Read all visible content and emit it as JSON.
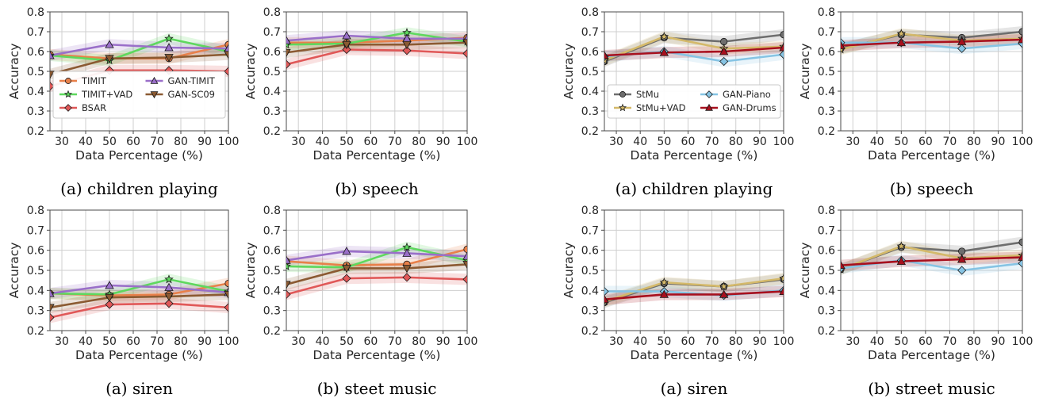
{
  "chart_data": [
    {
      "type": "line",
      "caption": "(a) children playing",
      "xlabel": "Data Percentage (%)",
      "ylabel": "Accuracy",
      "xlim": [
        25,
        100
      ],
      "ylim": [
        0.2,
        0.8
      ],
      "x": [
        25,
        50,
        75,
        100
      ],
      "xticks": [
        30,
        40,
        50,
        60,
        70,
        80,
        90,
        100
      ],
      "yticks": [
        0.2,
        0.3,
        0.4,
        0.5,
        0.6,
        0.7,
        0.8
      ],
      "grid": true,
      "legend": {
        "position": "lower-left",
        "columns": 2,
        "order": [
          "TIMIT",
          "TIMIT+VAD",
          "BSAR",
          "GAN-TIMIT",
          "GAN-SC09"
        ]
      },
      "series": [
        {
          "name": "TIMIT",
          "color": "#e8804a",
          "marker": "circle",
          "values": [
            0.585,
            0.565,
            0.565,
            0.635
          ]
        },
        {
          "name": "TIMIT+VAD",
          "color": "#5ed85e",
          "marker": "star",
          "values": [
            0.58,
            0.555,
            0.665,
            0.6
          ]
        },
        {
          "name": "BSAR",
          "color": "#e05858",
          "marker": "diamond",
          "values": [
            0.425,
            0.505,
            0.505,
            0.5
          ]
        },
        {
          "name": "GAN-TIMIT",
          "color": "#9a6fc9",
          "marker": "triangle",
          "values": [
            0.58,
            0.635,
            0.62,
            0.615
          ]
        },
        {
          "name": "GAN-SC09",
          "color": "#8b5a32",
          "marker": "tri-down",
          "values": [
            0.485,
            0.565,
            0.57,
            0.585
          ]
        }
      ]
    },
    {
      "type": "line",
      "caption": "(b) speech",
      "xlabel": "Data Percentage (%)",
      "ylabel": "Accuracy",
      "xlim": [
        25,
        100
      ],
      "ylim": [
        0.2,
        0.8
      ],
      "x": [
        25,
        50,
        75,
        100
      ],
      "xticks": [
        30,
        40,
        50,
        60,
        70,
        80,
        90,
        100
      ],
      "yticks": [
        0.2,
        0.3,
        0.4,
        0.5,
        0.6,
        0.7,
        0.8
      ],
      "grid": true,
      "series": [
        {
          "name": "TIMIT",
          "color": "#e8804a",
          "marker": "circle",
          "values": [
            0.645,
            0.645,
            0.655,
            0.67
          ]
        },
        {
          "name": "TIMIT+VAD",
          "color": "#5ed85e",
          "marker": "star",
          "values": [
            0.635,
            0.64,
            0.695,
            0.65
          ]
        },
        {
          "name": "BSAR",
          "color": "#e05858",
          "marker": "diamond",
          "values": [
            0.535,
            0.61,
            0.605,
            0.59
          ]
        },
        {
          "name": "GAN-TIMIT",
          "color": "#9a6fc9",
          "marker": "triangle",
          "values": [
            0.655,
            0.68,
            0.665,
            0.665
          ]
        },
        {
          "name": "GAN-SC09",
          "color": "#8b5a32",
          "marker": "tri-down",
          "values": [
            0.595,
            0.635,
            0.635,
            0.645
          ]
        }
      ]
    },
    {
      "type": "line",
      "caption": "(a) siren",
      "xlabel": "Data Percentage (%)",
      "ylabel": "Accuracy",
      "xlim": [
        25,
        100
      ],
      "ylim": [
        0.2,
        0.8
      ],
      "x": [
        25,
        50,
        75,
        100
      ],
      "xticks": [
        30,
        40,
        50,
        60,
        70,
        80,
        90,
        100
      ],
      "yticks": [
        0.2,
        0.3,
        0.4,
        0.5,
        0.6,
        0.7,
        0.8
      ],
      "grid": true,
      "series": [
        {
          "name": "TIMIT",
          "color": "#e8804a",
          "marker": "circle",
          "values": [
            0.385,
            0.375,
            0.38,
            0.435
          ]
        },
        {
          "name": "TIMIT+VAD",
          "color": "#5ed85e",
          "marker": "star",
          "values": [
            0.385,
            0.38,
            0.455,
            0.395
          ]
        },
        {
          "name": "BSAR",
          "color": "#e05858",
          "marker": "diamond",
          "values": [
            0.265,
            0.33,
            0.335,
            0.315
          ]
        },
        {
          "name": "GAN-TIMIT",
          "color": "#9a6fc9",
          "marker": "triangle",
          "values": [
            0.385,
            0.425,
            0.415,
            0.39
          ]
        },
        {
          "name": "GAN-SC09",
          "color": "#8b5a32",
          "marker": "tri-down",
          "values": [
            0.315,
            0.365,
            0.37,
            0.38
          ]
        }
      ]
    },
    {
      "type": "line",
      "caption": "(b) steet music",
      "xlabel": "Data Percentage (%)",
      "ylabel": "Accuracy",
      "xlim": [
        25,
        100
      ],
      "ylim": [
        0.2,
        0.8
      ],
      "x": [
        25,
        50,
        75,
        100
      ],
      "xticks": [
        30,
        40,
        50,
        60,
        70,
        80,
        90,
        100
      ],
      "yticks": [
        0.2,
        0.3,
        0.4,
        0.5,
        0.6,
        0.7,
        0.8
      ],
      "grid": true,
      "series": [
        {
          "name": "TIMIT",
          "color": "#e8804a",
          "marker": "circle",
          "values": [
            0.545,
            0.525,
            0.53,
            0.605
          ]
        },
        {
          "name": "TIMIT+VAD",
          "color": "#5ed85e",
          "marker": "star",
          "values": [
            0.52,
            0.515,
            0.615,
            0.55
          ]
        },
        {
          "name": "BSAR",
          "color": "#e05858",
          "marker": "diamond",
          "values": [
            0.38,
            0.46,
            0.465,
            0.455
          ]
        },
        {
          "name": "GAN-TIMIT",
          "color": "#9a6fc9",
          "marker": "triangle",
          "values": [
            0.55,
            0.595,
            0.585,
            0.57
          ]
        },
        {
          "name": "GAN-SC09",
          "color": "#8b5a32",
          "marker": "tri-down",
          "values": [
            0.43,
            0.51,
            0.51,
            0.53
          ]
        }
      ]
    },
    {
      "type": "line",
      "caption": "(a) children playing",
      "xlabel": "Data Percentage (%)",
      "ylabel": "Accuracy",
      "xlim": [
        25,
        100
      ],
      "ylim": [
        0.2,
        0.8
      ],
      "x": [
        25,
        50,
        75,
        100
      ],
      "xticks": [
        30,
        40,
        50,
        60,
        70,
        80,
        90,
        100
      ],
      "yticks": [
        0.2,
        0.3,
        0.4,
        0.5,
        0.6,
        0.7,
        0.8
      ],
      "grid": true,
      "legend": {
        "position": "lower-left",
        "columns": 2,
        "order": [
          "StMu",
          "StMu+VAD",
          "GAN-Piano",
          "GAN-Drums"
        ]
      },
      "series": [
        {
          "name": "StMu",
          "color": "#6e6e6e",
          "marker": "circle",
          "values": [
            0.55,
            0.67,
            0.65,
            0.685
          ]
        },
        {
          "name": "StMu+VAD",
          "color": "#d4b96a",
          "marker": "star",
          "values": [
            0.555,
            0.675,
            0.615,
            0.625
          ]
        },
        {
          "name": "GAN-Piano",
          "color": "#86c4e4",
          "marker": "diamond",
          "values": [
            0.575,
            0.6,
            0.55,
            0.585
          ]
        },
        {
          "name": "GAN-Drums",
          "color": "#a8101e",
          "marker": "triangle",
          "values": [
            0.58,
            0.595,
            0.6,
            0.62
          ]
        }
      ]
    },
    {
      "type": "line",
      "caption": "(b) speech",
      "xlabel": "Data Percentage (%)",
      "ylabel": "Accuracy",
      "xlim": [
        25,
        100
      ],
      "ylim": [
        0.2,
        0.8
      ],
      "x": [
        25,
        50,
        75,
        100
      ],
      "xticks": [
        30,
        40,
        50,
        60,
        70,
        80,
        90,
        100
      ],
      "yticks": [
        0.2,
        0.3,
        0.4,
        0.5,
        0.6,
        0.7,
        0.8
      ],
      "grid": true,
      "series": [
        {
          "name": "StMu",
          "color": "#6e6e6e",
          "marker": "circle",
          "values": [
            0.615,
            0.685,
            0.67,
            0.7
          ]
        },
        {
          "name": "StMu+VAD",
          "color": "#d4b96a",
          "marker": "star",
          "values": [
            0.61,
            0.69,
            0.655,
            0.665
          ]
        },
        {
          "name": "GAN-Piano",
          "color": "#86c4e4",
          "marker": "diamond",
          "values": [
            0.645,
            0.645,
            0.615,
            0.64
          ]
        },
        {
          "name": "GAN-Drums",
          "color": "#a8101e",
          "marker": "triangle",
          "values": [
            0.63,
            0.645,
            0.65,
            0.66
          ]
        }
      ]
    },
    {
      "type": "line",
      "caption": "(a) siren",
      "xlabel": "Data Percentage (%)",
      "ylabel": "Accuracy",
      "xlim": [
        25,
        100
      ],
      "ylim": [
        0.2,
        0.8
      ],
      "x": [
        25,
        50,
        75,
        100
      ],
      "xticks": [
        30,
        40,
        50,
        60,
        70,
        80,
        90,
        100
      ],
      "yticks": [
        0.2,
        0.3,
        0.4,
        0.5,
        0.6,
        0.7,
        0.8
      ],
      "grid": true,
      "series": [
        {
          "name": "StMu",
          "color": "#6e6e6e",
          "marker": "circle",
          "values": [
            0.34,
            0.435,
            0.42,
            0.455
          ]
        },
        {
          "name": "StMu+VAD",
          "color": "#d4b96a",
          "marker": "star",
          "values": [
            0.345,
            0.44,
            0.42,
            0.46
          ]
        },
        {
          "name": "GAN-Piano",
          "color": "#86c4e4",
          "marker": "diamond",
          "values": [
            0.395,
            0.395,
            0.375,
            0.4
          ]
        },
        {
          "name": "GAN-Drums",
          "color": "#a8101e",
          "marker": "triangle",
          "values": [
            0.355,
            0.38,
            0.38,
            0.395
          ]
        }
      ]
    },
    {
      "type": "line",
      "caption": "(b) street music",
      "xlabel": "Data Percentage (%)",
      "ylabel": "Accuracy",
      "xlim": [
        25,
        100
      ],
      "ylim": [
        0.2,
        0.8
      ],
      "x": [
        25,
        50,
        75,
        100
      ],
      "xticks": [
        30,
        40,
        50,
        60,
        70,
        80,
        90,
        100
      ],
      "yticks": [
        0.2,
        0.3,
        0.4,
        0.5,
        0.6,
        0.7,
        0.8
      ],
      "grid": true,
      "series": [
        {
          "name": "StMu",
          "color": "#6e6e6e",
          "marker": "circle",
          "values": [
            0.505,
            0.615,
            0.595,
            0.64
          ]
        },
        {
          "name": "StMu+VAD",
          "color": "#d4b96a",
          "marker": "star",
          "values": [
            0.505,
            0.62,
            0.56,
            0.575
          ]
        },
        {
          "name": "GAN-Piano",
          "color": "#86c4e4",
          "marker": "diamond",
          "values": [
            0.51,
            0.55,
            0.5,
            0.535
          ]
        },
        {
          "name": "GAN-Drums",
          "color": "#a8101e",
          "marker": "triangle",
          "values": [
            0.525,
            0.545,
            0.555,
            0.565
          ]
        }
      ]
    }
  ]
}
